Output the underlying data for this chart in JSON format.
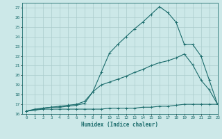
{
  "bg_color": "#cce8e8",
  "grid_color": "#aacccc",
  "line_color": "#1a6b6b",
  "xlabel": "Humidex (Indice chaleur)",
  "xlim": [
    -0.5,
    23
  ],
  "ylim": [
    16,
    27.5
  ],
  "yticks": [
    16,
    17,
    18,
    19,
    20,
    21,
    22,
    23,
    24,
    25,
    26,
    27
  ],
  "xticks": [
    0,
    1,
    2,
    3,
    4,
    5,
    6,
    7,
    8,
    9,
    10,
    11,
    12,
    13,
    14,
    15,
    16,
    17,
    18,
    19,
    20,
    21,
    22,
    23
  ],
  "line1_x": [
    0,
    1,
    2,
    3,
    4,
    5,
    6,
    7,
    8,
    9,
    10,
    11,
    12,
    13,
    14,
    15,
    16,
    17,
    18,
    19,
    20,
    21,
    22,
    23
  ],
  "line1_y": [
    16.3,
    16.4,
    16.5,
    16.5,
    16.5,
    16.5,
    16.5,
    16.5,
    16.5,
    16.5,
    16.6,
    16.6,
    16.6,
    16.6,
    16.7,
    16.7,
    16.8,
    16.8,
    16.9,
    17.0,
    17.0,
    17.0,
    17.0,
    17.0
  ],
  "line2_x": [
    0,
    1,
    2,
    3,
    4,
    5,
    6,
    7,
    8,
    9,
    10,
    11,
    12,
    13,
    14,
    15,
    16,
    17,
    18,
    19,
    20,
    21,
    22,
    23
  ],
  "line2_y": [
    16.3,
    16.4,
    16.6,
    16.7,
    16.7,
    16.8,
    16.9,
    17.1,
    18.3,
    19.0,
    19.3,
    19.6,
    19.9,
    20.3,
    20.6,
    21.0,
    21.3,
    21.5,
    21.8,
    22.2,
    21.1,
    19.5,
    18.5,
    17.0
  ],
  "line3_x": [
    0,
    1,
    2,
    3,
    4,
    5,
    6,
    7,
    8,
    9,
    10,
    11,
    12,
    13,
    14,
    15,
    16,
    17,
    18,
    19,
    20,
    21,
    22,
    23
  ],
  "line3_y": [
    16.3,
    16.5,
    16.6,
    16.7,
    16.8,
    16.9,
    17.0,
    17.3,
    18.3,
    20.3,
    22.3,
    23.2,
    24.0,
    24.8,
    25.5,
    26.3,
    27.1,
    26.5,
    25.5,
    23.2,
    23.2,
    22.0,
    19.5,
    17.0
  ]
}
